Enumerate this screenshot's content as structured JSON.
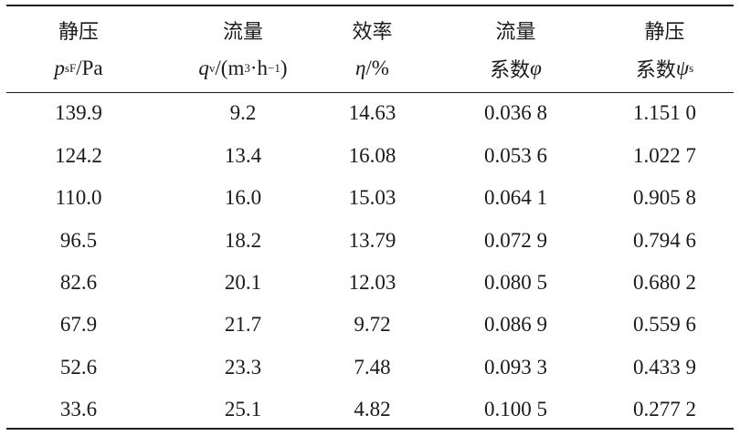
{
  "header_row1": [
    "静压",
    "流量",
    "效率",
    "流量",
    "静压"
  ],
  "header_row2": {
    "col0": {
      "sym": "p",
      "sub": "sF",
      "unit": "/Pa"
    },
    "col1": {
      "sym": "q",
      "sub": "v",
      "unit_pre": "/(m",
      "sup1": "3",
      "dot": "·h",
      "sup2": "−1",
      "close": ")"
    },
    "col2": {
      "sym": "η",
      "unit": "/%"
    },
    "col3": {
      "label": "系数",
      "sym": "φ"
    },
    "col4": {
      "label": "系数",
      "sym": "ψ",
      "sub": "s"
    }
  },
  "rows": [
    [
      "139.9",
      "9.2",
      "14.63",
      "0.036 8",
      "1.151 0"
    ],
    [
      "124.2",
      "13.4",
      "16.08",
      "0.053 6",
      "1.022 7"
    ],
    [
      "110.0",
      "16.0",
      "15.03",
      "0.064 1",
      "0.905 8"
    ],
    [
      "96.5",
      "18.2",
      "13.79",
      "0.072 9",
      "0.794 6"
    ],
    [
      "82.6",
      "20.1",
      "12.03",
      "0.080 5",
      "0.680 2"
    ],
    [
      "67.9",
      "21.7",
      "9.72",
      "0.086 9",
      "0.559 6"
    ],
    [
      "52.6",
      "23.3",
      "7.48",
      "0.093 3",
      "0.433 9"
    ],
    [
      "33.6",
      "25.1",
      "4.82",
      "0.100 5",
      "0.277 2"
    ]
  ]
}
